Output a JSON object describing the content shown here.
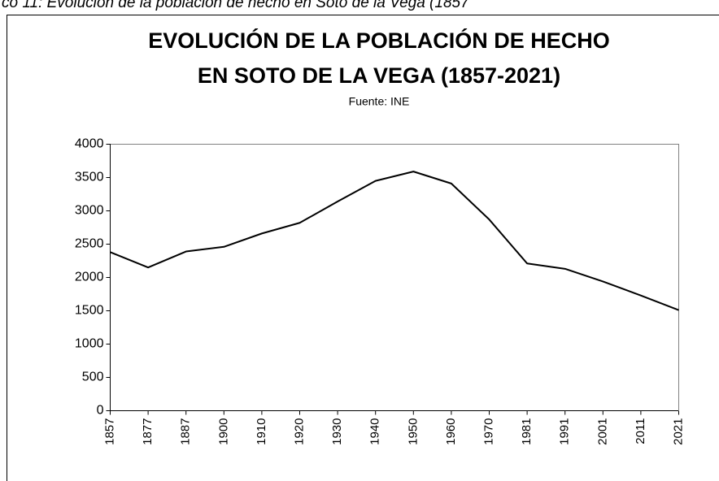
{
  "caption": "co 11: Evolución de la población de hecho en Soto de la Vega (1857",
  "chart_data": {
    "type": "line",
    "title": [
      "EVOLUCIÓN DE LA POBLACIÓN DE HECHO",
      "EN SOTO DE LA VEGA (1857-2021)"
    ],
    "subtitle": "Fuente: INE",
    "categories": [
      "1857",
      "1877",
      "1887",
      "1900",
      "1910",
      "1920",
      "1930",
      "1940",
      "1950",
      "1960",
      "1970",
      "1981",
      "1991",
      "2001",
      "2011",
      "2021"
    ],
    "values": [
      2380,
      2150,
      2390,
      2460,
      2660,
      2820,
      3140,
      3450,
      3590,
      3410,
      2870,
      2210,
      2130,
      1940,
      1730,
      1510
    ],
    "color": "#000000",
    "ylim": [
      0,
      4000
    ],
    "yticks": [
      0,
      500,
      1000,
      1500,
      2000,
      2500,
      3000,
      3500,
      4000
    ],
    "grid": false
  }
}
